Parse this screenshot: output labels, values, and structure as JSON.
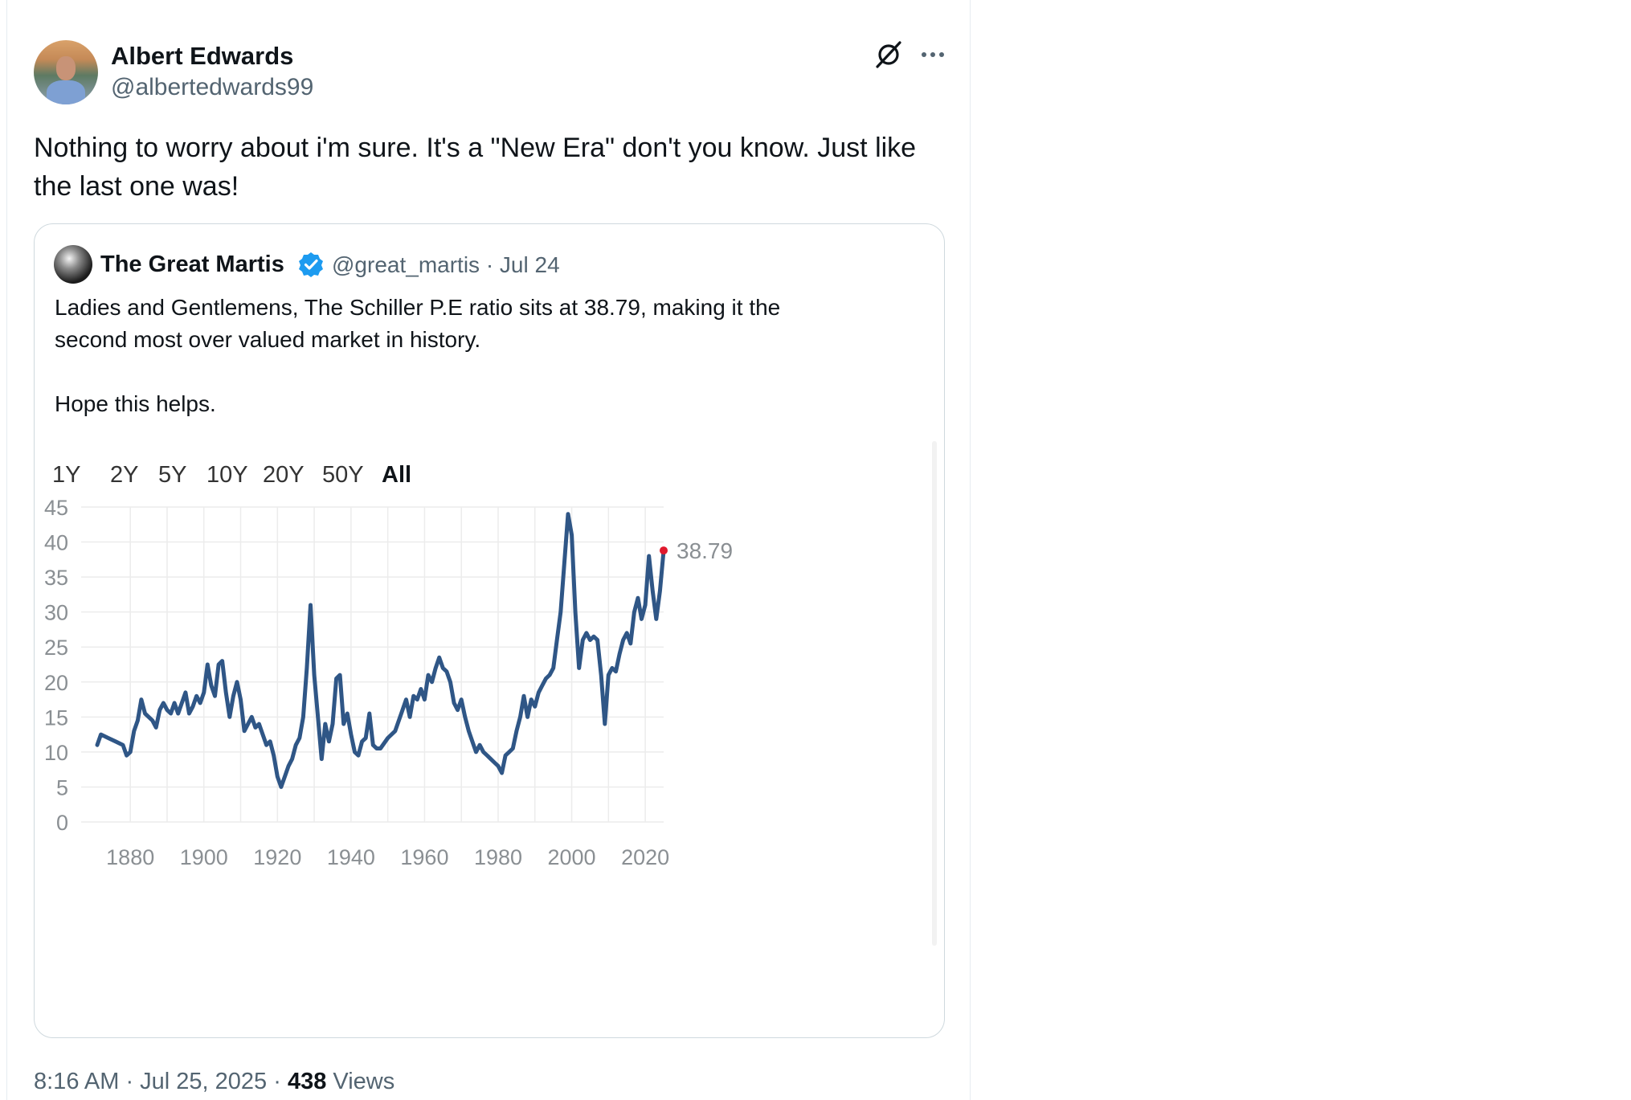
{
  "tweet": {
    "author_name": "Albert Edwards",
    "author_handle": "@albertedwards99",
    "text": "Nothing to worry about i'm sure. It's a \"New Era\" don't you know. Just like the last one was!",
    "time": "8:16 AM · Jul 25, 2025 · ",
    "views_count": "438",
    "views_label": " Views",
    "icons": [
      "grok-icon",
      "more-icon"
    ]
  },
  "quote": {
    "author_name": "The Great Martis",
    "author_handle": "@great_martis · Jul 24",
    "text": "Ladies and Gentlemens, The Schiller P.E ratio sits at 38.79, making it the\nsecond most over valued market in history.\n\nHope this helps.",
    "verified_color": "#1d9bf0"
  },
  "chart_data": {
    "type": "line",
    "ranges": [
      "1Y",
      "2Y",
      "5Y",
      "10Y",
      "20Y",
      "50Y",
      "All"
    ],
    "active_range": "All",
    "ylim": [
      0,
      45
    ],
    "yticks": [
      "45",
      "40",
      "35",
      "30",
      "25",
      "20",
      "15",
      "10",
      "5",
      "0"
    ],
    "xlim": [
      1871,
      2025
    ],
    "xticks": [
      "1880",
      "1900",
      "1920",
      "1940",
      "1960",
      "1980",
      "2000",
      "2020"
    ],
    "last_value_label": "38.79",
    "line_color": "#2f5686",
    "marker_color": "#e0192d",
    "grid": true,
    "series": [
      {
        "points": [
          [
            1871,
            11
          ],
          [
            1872,
            12.5
          ],
          [
            1874,
            12
          ],
          [
            1876,
            11.5
          ],
          [
            1878,
            11
          ],
          [
            1879,
            9.5
          ],
          [
            1880,
            10
          ],
          [
            1881,
            13
          ],
          [
            1882,
            14.5
          ],
          [
            1883,
            17.5
          ],
          [
            1884,
            15.5
          ],
          [
            1886,
            14.5
          ],
          [
            1887,
            13.5
          ],
          [
            1888,
            16
          ],
          [
            1889,
            17
          ],
          [
            1890,
            16
          ],
          [
            1891,
            15.5
          ],
          [
            1892,
            17
          ],
          [
            1893,
            15.5
          ],
          [
            1894,
            17
          ],
          [
            1895,
            18.5
          ],
          [
            1896,
            15.5
          ],
          [
            1897,
            16.5
          ],
          [
            1898,
            18
          ],
          [
            1899,
            17
          ],
          [
            1900,
            18.5
          ],
          [
            1901,
            22.5
          ],
          [
            1902,
            19.5
          ],
          [
            1903,
            18
          ],
          [
            1904,
            22.5
          ],
          [
            1905,
            23
          ],
          [
            1906,
            18.5
          ],
          [
            1907,
            15
          ],
          [
            1908,
            18
          ],
          [
            1909,
            20
          ],
          [
            1910,
            17.5
          ],
          [
            1911,
            13
          ],
          [
            1912,
            14
          ],
          [
            1913,
            15
          ],
          [
            1914,
            13.5
          ],
          [
            1915,
            14
          ],
          [
            1916,
            12.5
          ],
          [
            1917,
            11
          ],
          [
            1918,
            11.5
          ],
          [
            1919,
            9.5
          ],
          [
            1920,
            6.5
          ],
          [
            1921,
            5
          ],
          [
            1922,
            6.5
          ],
          [
            1923,
            8
          ],
          [
            1924,
            9
          ],
          [
            1925,
            11
          ],
          [
            1926,
            12
          ],
          [
            1927,
            15
          ],
          [
            1928,
            22
          ],
          [
            1929,
            31
          ],
          [
            1930,
            21
          ],
          [
            1931,
            15
          ],
          [
            1932,
            9
          ],
          [
            1933,
            14
          ],
          [
            1934,
            11.5
          ],
          [
            1935,
            14
          ],
          [
            1936,
            20.5
          ],
          [
            1937,
            21
          ],
          [
            1938,
            14
          ],
          [
            1939,
            15.5
          ],
          [
            1940,
            12.5
          ],
          [
            1941,
            10
          ],
          [
            1942,
            9.5
          ],
          [
            1943,
            11.5
          ],
          [
            1944,
            12
          ],
          [
            1945,
            15.5
          ],
          [
            1946,
            11
          ],
          [
            1947,
            10.5
          ],
          [
            1948,
            10.5
          ],
          [
            1950,
            12
          ],
          [
            1952,
            13
          ],
          [
            1954,
            16
          ],
          [
            1955,
            17.5
          ],
          [
            1956,
            15
          ],
          [
            1957,
            18
          ],
          [
            1958,
            17.5
          ],
          [
            1959,
            19
          ],
          [
            1960,
            17.5
          ],
          [
            1961,
            21
          ],
          [
            1962,
            20
          ],
          [
            1963,
            22
          ],
          [
            1964,
            23.5
          ],
          [
            1965,
            22
          ],
          [
            1966,
            21.5
          ],
          [
            1967,
            20
          ],
          [
            1968,
            17
          ],
          [
            1969,
            16
          ],
          [
            1970,
            17.5
          ],
          [
            1971,
            15
          ],
          [
            1972,
            13
          ],
          [
            1973,
            11.5
          ],
          [
            1974,
            10
          ],
          [
            1975,
            11
          ],
          [
            1976,
            10
          ],
          [
            1977,
            9.5
          ],
          [
            1978,
            9
          ],
          [
            1979,
            8.5
          ],
          [
            1980,
            8
          ],
          [
            1981,
            7
          ],
          [
            1982,
            9.5
          ],
          [
            1983,
            10
          ],
          [
            1984,
            10.5
          ],
          [
            1985,
            13
          ],
          [
            1986,
            15
          ],
          [
            1987,
            18
          ],
          [
            1988,
            15
          ],
          [
            1989,
            17.5
          ],
          [
            1990,
            16.5
          ],
          [
            1991,
            18.5
          ],
          [
            1992,
            19.5
          ],
          [
            1993,
            20.5
          ],
          [
            1994,
            21
          ],
          [
            1995,
            22
          ],
          [
            1996,
            26
          ],
          [
            1997,
            30
          ],
          [
            1998,
            37
          ],
          [
            1999,
            44
          ],
          [
            2000,
            41
          ],
          [
            2001,
            30
          ],
          [
            2002,
            22
          ],
          [
            2003,
            26
          ],
          [
            2004,
            27
          ],
          [
            2005,
            26
          ],
          [
            2006,
            26.5
          ],
          [
            2007,
            26
          ],
          [
            2008,
            21
          ],
          [
            2009,
            14
          ],
          [
            2010,
            21
          ],
          [
            2011,
            22
          ],
          [
            2012,
            21.5
          ],
          [
            2013,
            24
          ],
          [
            2014,
            26
          ],
          [
            2015,
            27
          ],
          [
            2016,
            25.5
          ],
          [
            2017,
            30
          ],
          [
            2018,
            32
          ],
          [
            2019,
            29
          ],
          [
            2020,
            31
          ],
          [
            2021,
            38
          ],
          [
            2022,
            33
          ],
          [
            2023,
            29
          ],
          [
            2024,
            33
          ],
          [
            2025,
            38.79
          ]
        ]
      }
    ]
  }
}
